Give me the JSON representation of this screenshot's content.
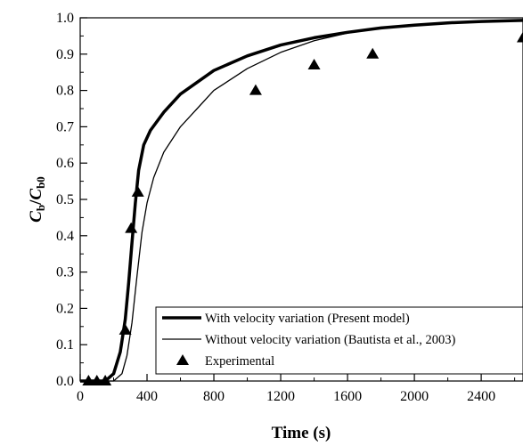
{
  "chart_data": {
    "type": "line",
    "xlabel": "Time (s)",
    "ylabel": "C_b/C_b0",
    "xlim": [
      0,
      2650
    ],
    "ylim": [
      0,
      1.0
    ],
    "x_ticks": [
      0,
      400,
      800,
      1200,
      1600,
      2000,
      2400
    ],
    "y_ticks": [
      0.0,
      0.1,
      0.2,
      0.3,
      0.4,
      0.5,
      0.6,
      0.7,
      0.8,
      0.9,
      1.0
    ],
    "x_tick_labels": [
      "0",
      "400",
      "800",
      "1200",
      "1600",
      "2000",
      "2400"
    ],
    "y_tick_labels": [
      "0.0",
      "0.1",
      "0.2",
      "0.3",
      "0.4",
      "0.5",
      "0.6",
      "0.7",
      "0.8",
      "0.9",
      "1.0"
    ],
    "grid": false,
    "legend_position": "bottom-right",
    "series": [
      {
        "name": "With velocity variation (Present model)",
        "style": "thick-line",
        "color": "#000000",
        "x": [
          0,
          150,
          200,
          240,
          270,
          290,
          310,
          330,
          350,
          380,
          420,
          500,
          600,
          800,
          1000,
          1200,
          1400,
          1600,
          1800,
          2000,
          2200,
          2400,
          2650
        ],
        "y": [
          0,
          0,
          0.02,
          0.08,
          0.17,
          0.27,
          0.38,
          0.49,
          0.58,
          0.65,
          0.69,
          0.74,
          0.79,
          0.855,
          0.895,
          0.925,
          0.945,
          0.96,
          0.972,
          0.98,
          0.986,
          0.99,
          0.993
        ]
      },
      {
        "name": "Without velocity variation (Bautista et al., 2003)",
        "style": "thin-line",
        "color": "#000000",
        "x": [
          0,
          200,
          250,
          280,
          310,
          340,
          370,
          400,
          440,
          500,
          600,
          700,
          800,
          1000,
          1200,
          1400,
          1600,
          1800,
          2000,
          2200,
          2400,
          2650
        ],
        "y": [
          0,
          0,
          0.02,
          0.07,
          0.16,
          0.29,
          0.41,
          0.49,
          0.56,
          0.63,
          0.7,
          0.75,
          0.8,
          0.86,
          0.905,
          0.937,
          0.958,
          0.972,
          0.981,
          0.987,
          0.991,
          0.994
        ]
      },
      {
        "name": "Experimental",
        "style": "triangle-markers",
        "color": "#000000",
        "x": [
          50,
          100,
          150,
          270,
          305,
          345,
          1050,
          1400,
          1750,
          2650
        ],
        "y": [
          0,
          0,
          0,
          0.14,
          0.42,
          0.52,
          0.8,
          0.87,
          0.9,
          0.945
        ]
      }
    ]
  }
}
